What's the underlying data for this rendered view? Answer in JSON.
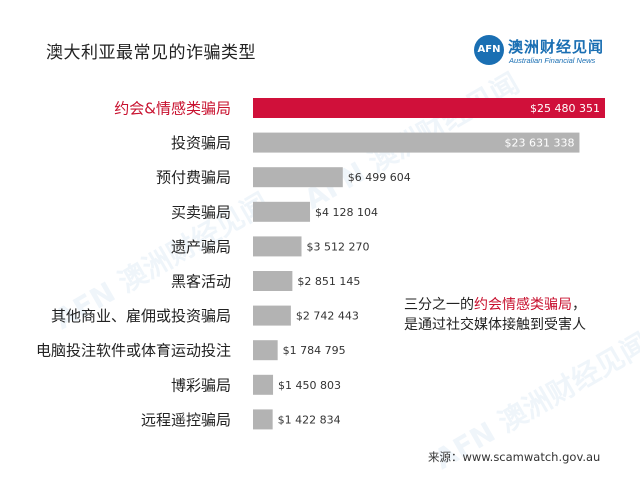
{
  "header": {
    "title": "澳大利亚最常见的诈骗类型"
  },
  "logo": {
    "mark": "AFN",
    "name_cn": "澳洲财经见闻",
    "name_en": "Australian Financial News"
  },
  "chart_data": {
    "type": "bar",
    "orientation": "horizontal",
    "title": "澳大利亚最常见的诈骗类型",
    "categories": [
      "约会&情感类骗局",
      "投资骗局",
      "预付费骗局",
      "买卖骗局",
      "遗产骗局",
      "黑客活动",
      "其他商业、雇佣或投资骗局",
      "电脑投注软件或体育运动投注",
      "博彩骗局",
      "远程遥控骗局"
    ],
    "values": [
      25480351,
      23631338,
      6499604,
      4128104,
      3512270,
      2851145,
      2742443,
      1784795,
      1450803,
      1422834
    ],
    "value_labels": [
      "$25 480 351",
      "$23 631 338",
      "$6 499 604",
      "$4 128 104",
      "$3 512 270",
      "$2 851 145",
      "$2 742 443",
      "$1 784 795",
      "$1 450 803",
      "$1 422 834"
    ],
    "highlight_index": 0,
    "colors": {
      "highlight": "#d0103a",
      "default": "#b3b3b3"
    },
    "grid": false,
    "legend": "none"
  },
  "annotation": {
    "prefix": "三分之一的",
    "highlight": "约会情感类骗局",
    "suffix": "，",
    "line2": "是通过社交媒体接触到受害人"
  },
  "source": "来源：www.scamwatch.gov.au"
}
